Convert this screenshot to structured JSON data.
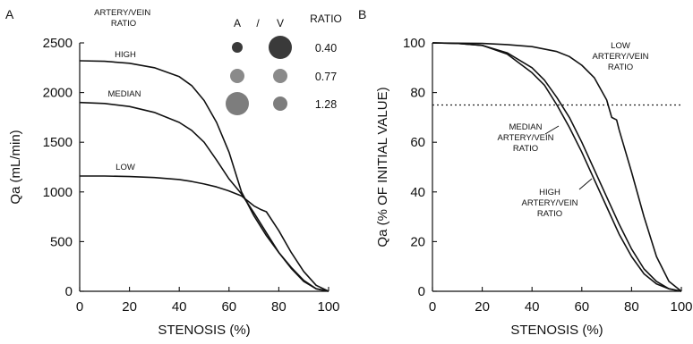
{
  "chart_data": [
    {
      "panel_label": "A",
      "type": "line",
      "xlabel": "STENOSIS (%)",
      "ylabel": "Qa (mL/min)",
      "xlim": [
        0,
        100
      ],
      "ylim": [
        0,
        2500
      ],
      "x_ticks": [
        0,
        20,
        40,
        60,
        80,
        100
      ],
      "y_ticks": [
        0,
        500,
        1000,
        1500,
        2000,
        2500
      ],
      "annotation_title": "ARTERY/VEIN\nRATIO",
      "legend_header": {
        "a": "A",
        "slash": "/",
        "v": "V",
        "ratio": "RATIO"
      },
      "legend_rows": [
        {
          "a_size": "small",
          "v_size": "large",
          "ratio": "0.40",
          "a_color": "#3a3a3a",
          "v_color": "#3a3a3a"
        },
        {
          "a_size": "medium",
          "v_size": "medium",
          "ratio": "0.77",
          "a_color": "#8a8a8a",
          "v_color": "#8a8a8a"
        },
        {
          "a_size": "large",
          "v_size": "medium",
          "ratio": "1.28",
          "a_color": "#7d7d7d",
          "v_color": "#7d7d7d"
        }
      ],
      "series": [
        {
          "name": "HIGH",
          "x": [
            0,
            10,
            20,
            30,
            40,
            45,
            50,
            55,
            60,
            65,
            70,
            75,
            80,
            85,
            90,
            95,
            100
          ],
          "y": [
            2320,
            2315,
            2295,
            2250,
            2160,
            2070,
            1920,
            1700,
            1400,
            1000,
            760,
            560,
            390,
            240,
            110,
            25,
            0
          ]
        },
        {
          "name": "MEDIAN",
          "x": [
            0,
            10,
            20,
            30,
            40,
            45,
            50,
            55,
            60,
            65,
            70,
            75,
            80,
            85,
            90,
            95,
            100
          ],
          "y": [
            1900,
            1890,
            1860,
            1800,
            1700,
            1620,
            1500,
            1320,
            1130,
            980,
            790,
            590,
            390,
            230,
            100,
            25,
            0
          ]
        },
        {
          "name": "LOW",
          "x": [
            0,
            10,
            20,
            30,
            40,
            45,
            50,
            55,
            60,
            65,
            70,
            73,
            75,
            80,
            85,
            90,
            95,
            100
          ],
          "y": [
            1160,
            1160,
            1155,
            1145,
            1125,
            1105,
            1080,
            1050,
            1010,
            960,
            860,
            820,
            800,
            610,
            390,
            200,
            60,
            0
          ]
        }
      ]
    },
    {
      "panel_label": "B",
      "type": "line",
      "xlabel": "STENOSIS (%)",
      "ylabel": "Qa (% OF INITIAL VALUE)",
      "xlim": [
        0,
        100
      ],
      "ylim": [
        0,
        100
      ],
      "x_ticks": [
        0,
        20,
        40,
        60,
        80,
        100
      ],
      "y_ticks": [
        0,
        20,
        40,
        60,
        80,
        100
      ],
      "reference_line": {
        "y": 75,
        "style": "dotted"
      },
      "annotations": [
        {
          "text": "LOW\nARTERY/VEIN\nRATIO"
        },
        {
          "text": "MEDIAN\nARTERY/VEIN\nRATIO"
        },
        {
          "text": "HIGH\nARTERY/VEIN\nRATIO"
        }
      ],
      "series": [
        {
          "name": "LOW ARTERY/VEIN RATIO",
          "x": [
            0,
            20,
            30,
            40,
            50,
            55,
            60,
            65,
            70,
            72,
            74,
            75,
            80,
            85,
            90,
            95,
            100
          ],
          "y": [
            100,
            99.8,
            99.3,
            98.5,
            96.5,
            94.5,
            91,
            86,
            77,
            70,
            69,
            65,
            48,
            30,
            14,
            4,
            0
          ]
        },
        {
          "name": "MEDIAN ARTERY/VEIN RATIO",
          "x": [
            0,
            10,
            20,
            30,
            40,
            45,
            50,
            55,
            60,
            65,
            70,
            75,
            80,
            85,
            90,
            95,
            100
          ],
          "y": [
            100,
            99.8,
            99,
            96,
            90,
            85,
            78,
            70,
            60,
            49,
            38,
            27,
            17,
            9,
            4,
            1,
            0
          ]
        },
        {
          "name": "HIGH ARTERY/VEIN RATIO",
          "x": [
            0,
            10,
            20,
            30,
            40,
            45,
            50,
            55,
            60,
            65,
            70,
            75,
            80,
            85,
            90,
            95,
            100
          ],
          "y": [
            100,
            99.8,
            99,
            95.5,
            88,
            83,
            75,
            66,
            56,
            45,
            34,
            23,
            14,
            7,
            3,
            1,
            0
          ]
        }
      ]
    }
  ]
}
